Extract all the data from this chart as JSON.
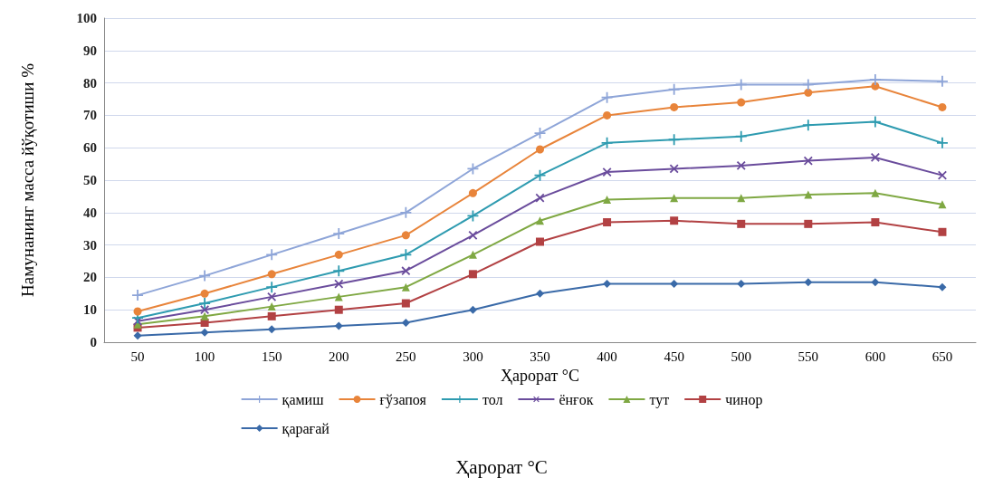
{
  "chart_data": {
    "type": "line",
    "xlabel": "Ҳарорат °C",
    "ylabel": "Намунанинг масса йўқотиши %",
    "annotations": [
      "Ҳарорат °C"
    ],
    "categories": [
      "50",
      "100",
      "150",
      "200",
      "250",
      "300",
      "350",
      "400",
      "450",
      "500",
      "550",
      "600",
      "650"
    ],
    "ylim": [
      0,
      100
    ],
    "yticks": [
      0,
      10,
      20,
      30,
      40,
      50,
      60,
      70,
      80,
      90,
      100
    ],
    "grid": "y",
    "legend": "bottom",
    "line_style": "solid",
    "series": [
      {
        "name": "қамиш",
        "color": "#8ea5d8",
        "marker": "cross",
        "values": [
          14.5,
          20.5,
          27,
          33.5,
          40,
          53.5,
          64.5,
          75.5,
          78,
          79.5,
          79.5,
          81,
          80.5
        ]
      },
      {
        "name": "ғўзапоя",
        "color": "#e8843a",
        "marker": "circle",
        "values": [
          9.5,
          15,
          21,
          27,
          33,
          46,
          59.5,
          70,
          72.5,
          74,
          77,
          79,
          72.5
        ]
      },
      {
        "name": "тол",
        "color": "#2e9bb0",
        "marker": "cross",
        "values": [
          7.5,
          12,
          17,
          22,
          27,
          39,
          51.5,
          61.5,
          62.5,
          63.5,
          67,
          68,
          61.5
        ]
      },
      {
        "name": "ёнғок",
        "color": "#6a4c9c",
        "marker": "cross",
        "values": [
          6.5,
          10,
          14,
          18,
          22,
          33,
          44.5,
          52.5,
          53.5,
          54.5,
          56,
          57,
          51.5
        ]
      },
      {
        "name": "тут",
        "color": "#7fa843",
        "marker": "triangle",
        "values": [
          5.5,
          8,
          11,
          14,
          17,
          27,
          37.5,
          44,
          44.5,
          44.5,
          45.5,
          46,
          42.5
        ]
      },
      {
        "name": "чинор",
        "color": "#b24143",
        "marker": "square",
        "values": [
          4.5,
          6,
          8,
          10,
          12,
          21,
          31,
          37,
          37.5,
          36.5,
          36.5,
          37,
          34
        ]
      },
      {
        "name": "қарағай",
        "color": "#3a6aa8",
        "marker": "diamond",
        "values": [
          2,
          3,
          4,
          5,
          6,
          10,
          15,
          18,
          18,
          18,
          18.5,
          18.5,
          17
        ]
      }
    ]
  }
}
